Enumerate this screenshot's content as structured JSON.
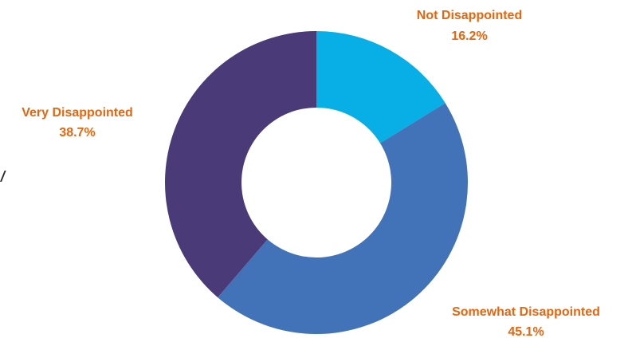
{
  "chart_data": {
    "type": "pie",
    "donut": true,
    "title": "",
    "slices": [
      {
        "label": "Not Disappointed",
        "value_label": "16.2%",
        "value": 16.2,
        "color": "#08AEE6"
      },
      {
        "label": "Somewhat Disappointed",
        "value_label": "45.1%",
        "value": 45.1,
        "color": "#4272B8"
      },
      {
        "label": "Very Disappointed",
        "value_label": "38.7%",
        "value": 38.7,
        "color": "#4A3A78"
      }
    ],
    "start_angle_deg": 0,
    "direction": "clockwise",
    "label_color": "#E8650D",
    "legend": "none"
  }
}
